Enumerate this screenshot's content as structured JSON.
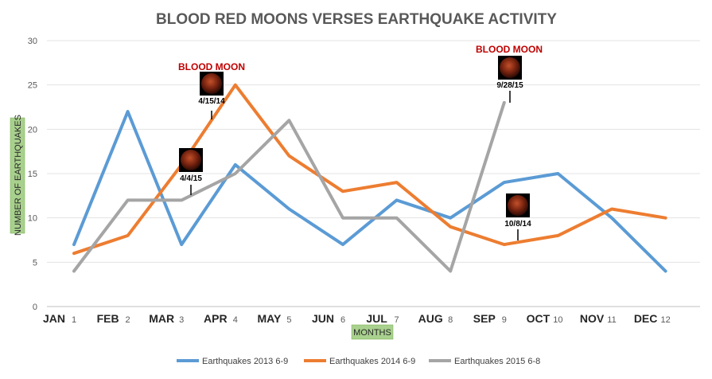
{
  "chart_data": {
    "type": "line",
    "title": "BLOOD RED MOONS VERSES EARTHQUAKE ACTIVITY",
    "ylabel": "NUMBER OF EARTHQUAKES",
    "xlabel": "MONTHS",
    "ylim": [
      0,
      30
    ],
    "yticks": [
      0,
      5,
      10,
      15,
      20,
      25,
      30
    ],
    "x": [
      "1",
      "2",
      "3",
      "4",
      "5",
      "6",
      "7",
      "8",
      "9",
      "10",
      "11",
      "12"
    ],
    "months": [
      "JAN",
      "FEB",
      "MAR",
      "APR",
      "MAY",
      "JUN",
      "JUL",
      "AUG",
      "SEP",
      "OCT",
      "NOV",
      "DEC"
    ],
    "grid": true,
    "legend_position": "bottom",
    "series": [
      {
        "name": "Earthquakes 2013 6-9",
        "color": "#5b9bd5",
        "values": [
          7,
          22,
          7,
          16,
          11,
          7,
          12,
          10,
          14,
          15,
          10,
          4
        ]
      },
      {
        "name": "Earthquakes 2014 6-9",
        "color": "#ed7d31",
        "values": [
          6,
          8,
          16,
          25,
          17,
          13,
          14,
          9,
          7,
          8,
          11,
          10
        ]
      },
      {
        "name": "Earthquakes 2015 6-8",
        "color": "#a5a5a5",
        "values": [
          4,
          12,
          12,
          15,
          21,
          10,
          10,
          4,
          23,
          null,
          null,
          null
        ]
      }
    ],
    "annotations": [
      {
        "label": "BLOOD MOON",
        "date": "4/15/14",
        "x": 4,
        "y": 25
      },
      {
        "label": "",
        "date": "4/4/15",
        "x": 3,
        "y": 15
      },
      {
        "label": "BLOOD MOON",
        "date": "9/28/15",
        "x": 9,
        "y": 23
      },
      {
        "label": "",
        "date": "10/8/14",
        "x": 9,
        "y": 7
      }
    ]
  }
}
